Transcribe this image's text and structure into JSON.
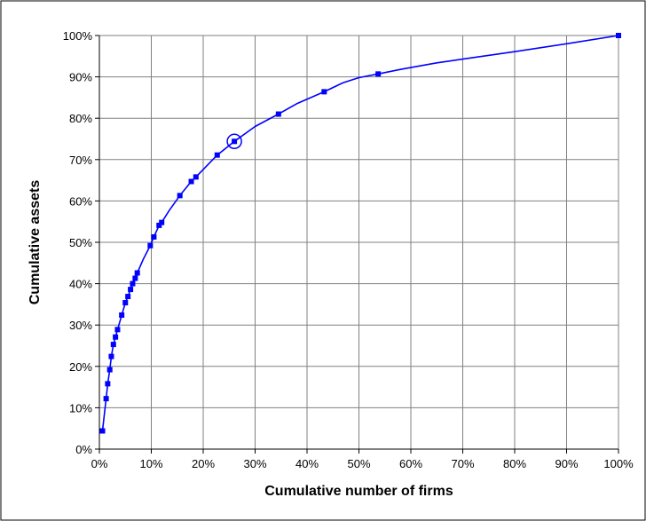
{
  "chart_data": {
    "type": "line",
    "title": "",
    "xlabel": "Cumulative number of firms",
    "ylabel": "Cumulative assets",
    "xlim": [
      0,
      100
    ],
    "ylim": [
      0,
      100
    ],
    "x_ticks": [
      "0%",
      "10%",
      "20%",
      "30%",
      "40%",
      "50%",
      "60%",
      "70%",
      "80%",
      "90%",
      "100%"
    ],
    "y_ticks": [
      "0%",
      "10%",
      "20%",
      "30%",
      "40%",
      "50%",
      "60%",
      "70%",
      "80%",
      "90%",
      "100%"
    ],
    "grid": true,
    "legend": "none",
    "colors": {
      "series": "#0000ff",
      "grid": "#808080",
      "axis": "#000000",
      "frame": "#000000"
    },
    "series": [
      {
        "x": [
          0.6,
          1.3,
          1.6,
          2.0,
          2.3,
          2.7,
          3.1,
          3.5,
          4.3,
          5.0,
          5.5,
          6.0,
          6.4,
          6.9,
          7.3,
          9.8,
          10.5,
          11.5,
          12.0,
          15.5,
          17.7,
          18.6,
          22.7,
          26.0,
          34.5,
          43.3,
          53.7,
          100
        ],
        "y": [
          4.4,
          12.2,
          15.8,
          19.2,
          22.4,
          25.3,
          27.1,
          28.9,
          32.4,
          35.4,
          36.9,
          38.6,
          40.0,
          41.3,
          42.6,
          49.2,
          51.3,
          54.1,
          54.8,
          61.3,
          64.7,
          65.8,
          71.1,
          74.4,
          81.0,
          86.4,
          90.7,
          100
        ],
        "line_x": [
          0.6,
          1.3,
          1.6,
          2.0,
          2.3,
          2.7,
          3.1,
          3.5,
          4.3,
          5.0,
          5.5,
          6.0,
          6.4,
          6.9,
          7.3,
          8.5,
          9.8,
          10.5,
          11.5,
          12.0,
          13.5,
          15.5,
          17.7,
          18.6,
          22.7,
          26.0,
          30.0,
          34.5,
          38.0,
          43.3,
          47.0,
          50.0,
          53.7,
          58.0,
          65.0,
          70.0,
          80.0,
          90.0,
          100
        ],
        "line_y": [
          4.4,
          12.2,
          15.8,
          19.2,
          22.4,
          25.3,
          27.1,
          28.9,
          32.4,
          35.4,
          36.9,
          38.6,
          40.0,
          41.3,
          42.6,
          46.0,
          49.2,
          51.3,
          54.1,
          54.8,
          57.8,
          61.3,
          64.7,
          65.8,
          71.1,
          74.4,
          78.0,
          81.0,
          83.5,
          86.4,
          88.6,
          89.8,
          90.7,
          91.8,
          93.4,
          94.3,
          96.1,
          98.0,
          100
        ]
      }
    ],
    "annotations": [
      {
        "type": "circle",
        "x": 26.0,
        "y": 74.4
      }
    ]
  }
}
